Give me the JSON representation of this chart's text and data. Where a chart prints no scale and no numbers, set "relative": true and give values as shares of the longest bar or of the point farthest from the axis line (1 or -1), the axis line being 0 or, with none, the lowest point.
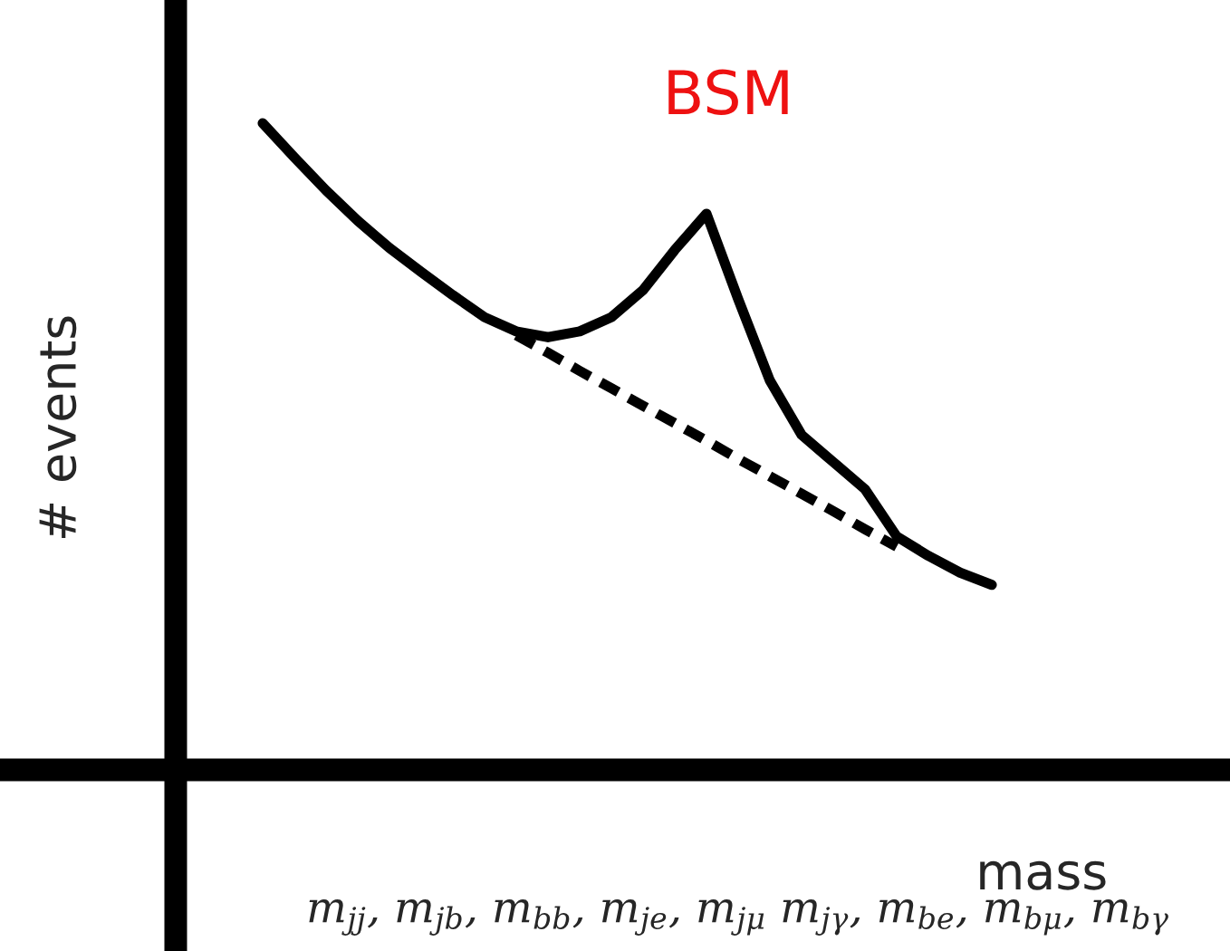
{
  "chart_data": {
    "type": "line",
    "relative": true,
    "xlabel": "mass",
    "ylabel": "# events",
    "annotations": [
      "BSM",
      "m$_{jj}$, m$_{jb}$, m$_{bb}$, m$_{je}$, m$_{jμ}$ m$_{jγ}$, m$_{be}$, m$_{bμ}$, m$_{bγ}$"
    ],
    "categories": [
      null,
      null,
      null,
      null,
      null,
      null,
      null,
      null,
      null,
      null,
      null,
      null,
      null,
      null,
      null,
      null,
      null,
      null,
      null,
      null,
      null,
      null,
      null,
      null
    ],
    "series": [
      {
        "color": "#000000",
        "line_style": "solid",
        "values": [
          1.0,
          0.947,
          0.896,
          0.849,
          0.807,
          0.77,
          0.734,
          0.7,
          0.678,
          0.669,
          0.678,
          0.7,
          0.742,
          0.804,
          0.86,
          0.728,
          0.602,
          0.518,
          0.476,
          0.434,
          0.361,
          0.331,
          0.305,
          0.286
        ]
      },
      {
        "color": "#000000",
        "line_style": "dashed",
        "values": [
          null,
          null,
          null,
          null,
          null,
          null,
          null,
          null,
          0.672,
          0.645,
          0.617,
          0.59,
          0.563,
          0.536,
          0.509,
          0.481,
          0.454,
          0.427,
          0.4,
          0.372,
          0.345,
          null,
          null,
          null
        ]
      }
    ]
  }
}
